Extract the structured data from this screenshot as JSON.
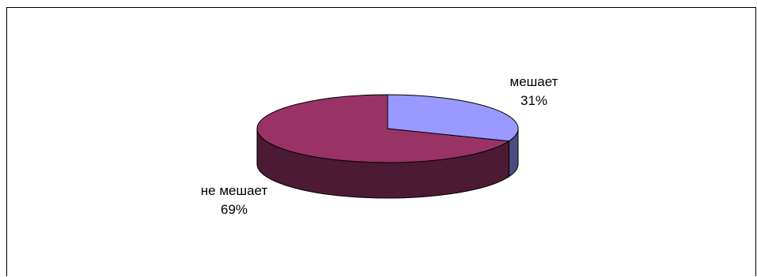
{
  "chart_data": {
    "type": "pie",
    "title": "",
    "slices": [
      {
        "label": "мешает",
        "value": 31,
        "value_label": "31%",
        "color": "#9999ff",
        "side_color": "#4c4c80"
      },
      {
        "label": "не мешает",
        "value": 69,
        "value_label": "69%",
        "color": "#993366",
        "side_color": "#4c1a33"
      }
    ],
    "style": "3d"
  }
}
